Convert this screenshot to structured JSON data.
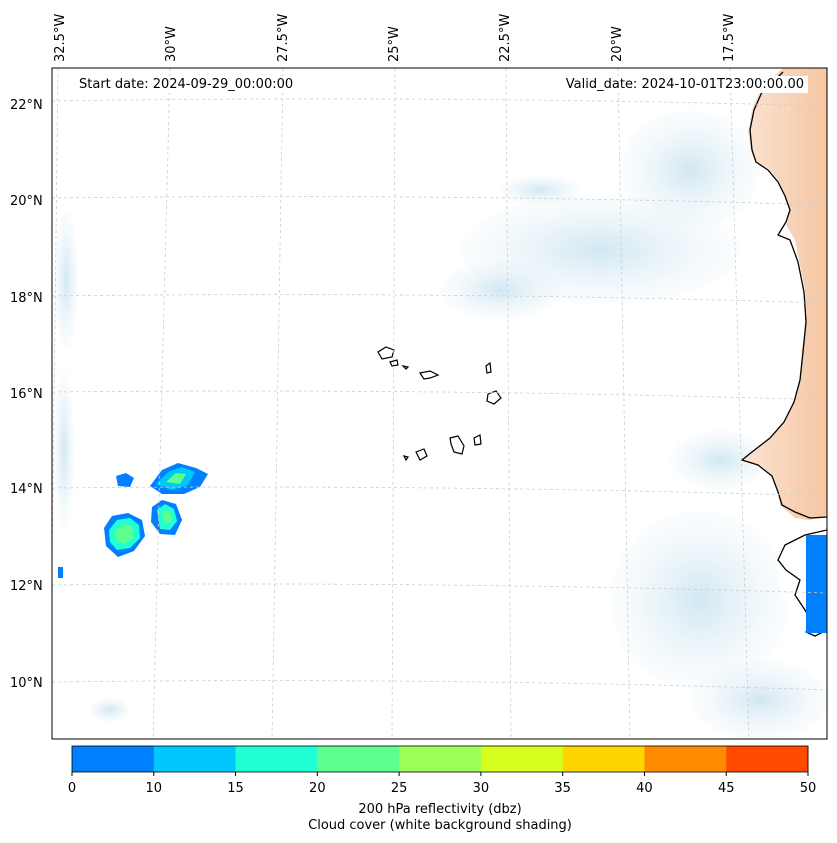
{
  "map": {
    "start_date": "Start date: 2024-09-29_00:00:00",
    "valid_date": "Valid_date: 2024-10-01T23:00:00.00",
    "lon_labels": [
      "32.5°W",
      "30°W",
      "27.5°W",
      "25°W",
      "22.5°W",
      "20°W",
      "17.5°W"
    ],
    "lat_labels": [
      "22°N",
      "20°N",
      "18°N",
      "16°N",
      "14°N",
      "12°N",
      "10°N"
    ],
    "region": "Cabo Verde and West African coast",
    "land_shading_color": "#f6c9a6",
    "cloud_shading_color": "#dceef6",
    "coastline_color": "#000000"
  },
  "colorbar": {
    "ticks": [
      "0",
      "10",
      "15",
      "20",
      "25",
      "30",
      "35",
      "40",
      "45",
      "50"
    ],
    "colors": [
      "#0080ff",
      "#00c8ff",
      "#21ffd5",
      "#5dff8f",
      "#9bff57",
      "#d6ff1f",
      "#ffd500",
      "#ff8b00",
      "#ff4a00"
    ],
    "label_line1": "200 hPa reflectivity (dbz)",
    "label_line2": "Cloud cover (white background shading)"
  }
}
